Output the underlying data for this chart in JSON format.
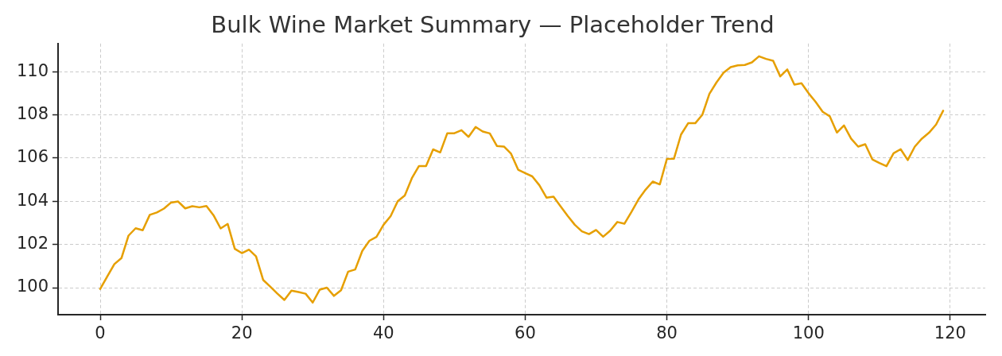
{
  "chart_data": {
    "type": "line",
    "title": "Bulk Wine Market Summary — Placeholder Trend",
    "x": [
      0,
      1,
      2,
      3,
      4,
      5,
      6,
      7,
      8,
      9,
      10,
      11,
      12,
      13,
      14,
      15,
      16,
      17,
      18,
      19,
      20,
      21,
      22,
      23,
      24,
      25,
      26,
      27,
      28,
      29,
      30,
      31,
      32,
      33,
      34,
      35,
      36,
      37,
      38,
      39,
      40,
      41,
      42,
      43,
      44,
      45,
      46,
      47,
      48,
      49,
      50,
      51,
      52,
      53,
      54,
      55,
      56,
      57,
      58,
      59,
      60,
      61,
      62,
      63,
      64,
      65,
      66,
      67,
      68,
      69,
      70,
      71,
      72,
      73,
      74,
      75,
      76,
      77,
      78,
      79,
      80,
      81,
      82,
      83,
      84,
      85,
      86,
      87,
      88,
      89,
      90,
      91,
      92,
      93,
      94,
      95,
      96,
      97,
      98,
      99,
      100,
      101,
      102,
      103,
      104,
      105,
      106,
      107,
      108,
      109,
      110,
      111,
      112,
      113,
      114,
      115,
      116,
      117,
      118,
      119
    ],
    "values": [
      99.94,
      100.52,
      101.09,
      101.37,
      102.41,
      102.75,
      102.66,
      103.37,
      103.48,
      103.66,
      103.94,
      103.99,
      103.67,
      103.77,
      103.72,
      103.78,
      103.35,
      102.74,
      102.95,
      101.8,
      101.6,
      101.76,
      101.45,
      100.36,
      100.05,
      99.73,
      99.43,
      99.86,
      99.8,
      99.72,
      99.31,
      99.91,
      100.0,
      99.62,
      99.88,
      100.74,
      100.84,
      101.7,
      102.17,
      102.35,
      102.91,
      103.31,
      104.0,
      104.27,
      105.07,
      105.63,
      105.63,
      106.4,
      106.26,
      107.15,
      107.15,
      107.29,
      106.98,
      107.44,
      107.23,
      107.14,
      106.56,
      106.53,
      106.2,
      105.46,
      105.3,
      105.15,
      104.74,
      104.17,
      104.21,
      103.76,
      103.32,
      102.91,
      102.61,
      102.48,
      102.67,
      102.36,
      102.64,
      103.04,
      102.96,
      103.51,
      104.09,
      104.54,
      104.91,
      104.78,
      105.96,
      105.97,
      107.09,
      107.61,
      107.61,
      108.0,
      108.97,
      109.5,
      109.95,
      110.21,
      110.29,
      110.31,
      110.43,
      110.71,
      110.59,
      110.5,
      109.78,
      110.1,
      109.4,
      109.46,
      109.0,
      108.6,
      108.14,
      107.93,
      107.18,
      107.51,
      106.9,
      106.53,
      106.64,
      105.94,
      105.77,
      105.62,
      106.22,
      106.41,
      105.91,
      106.53,
      106.9,
      107.17,
      107.55,
      108.19
    ],
    "color": "#e69f00",
    "line_style": "solid",
    "xlim": [
      -5.95,
      124.95
    ],
    "xticks": [
      0,
      20,
      40,
      60,
      80,
      100,
      120
    ],
    "ylim": [
      98.75,
      111.3
    ],
    "yticks": [
      100,
      102,
      104,
      106,
      108,
      110
    ],
    "grid": true
  }
}
